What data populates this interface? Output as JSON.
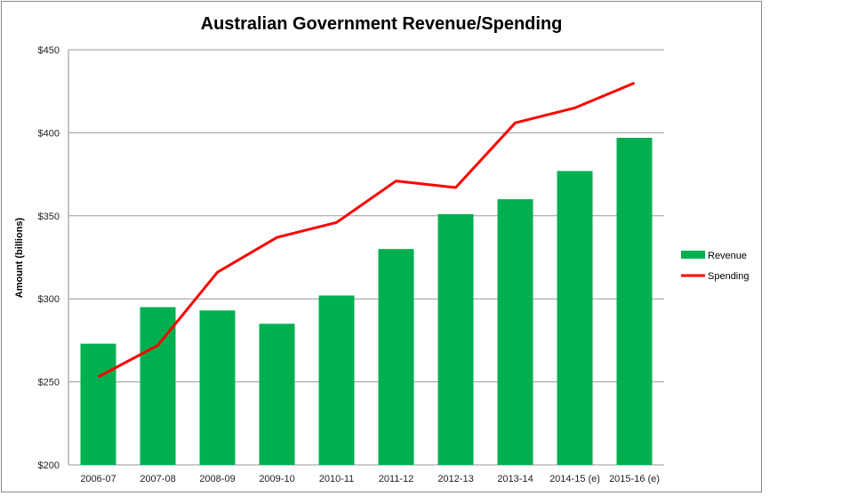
{
  "chart_data": {
    "type": "bar",
    "title": "Australian Government Revenue/Spending",
    "xlabel": "",
    "ylabel": "Amount (billions)",
    "ylim": [
      200,
      450
    ],
    "yticks": [
      "$200",
      "$250",
      "$300",
      "$350",
      "$400",
      "$450"
    ],
    "ytick_values": [
      200,
      250,
      300,
      350,
      400,
      450
    ],
    "grid": true,
    "legend_position": "right",
    "categories": [
      "2006-07",
      "2007-08",
      "2008-09",
      "2009-10",
      "2010-11",
      "2011-12",
      "2012-13",
      "2013-14",
      "2014-15 (e)",
      "2015-16 (e)"
    ],
    "series": [
      {
        "name": "Revenue",
        "type": "bar",
        "color": "#00b050",
        "values": [
          273,
          295,
          293,
          285,
          302,
          330,
          351,
          360,
          377,
          397
        ]
      },
      {
        "name": "Spending",
        "type": "line",
        "color": "#ff0000",
        "values": [
          253,
          272,
          316,
          337,
          346,
          371,
          367,
          406,
          415,
          430
        ]
      }
    ]
  }
}
